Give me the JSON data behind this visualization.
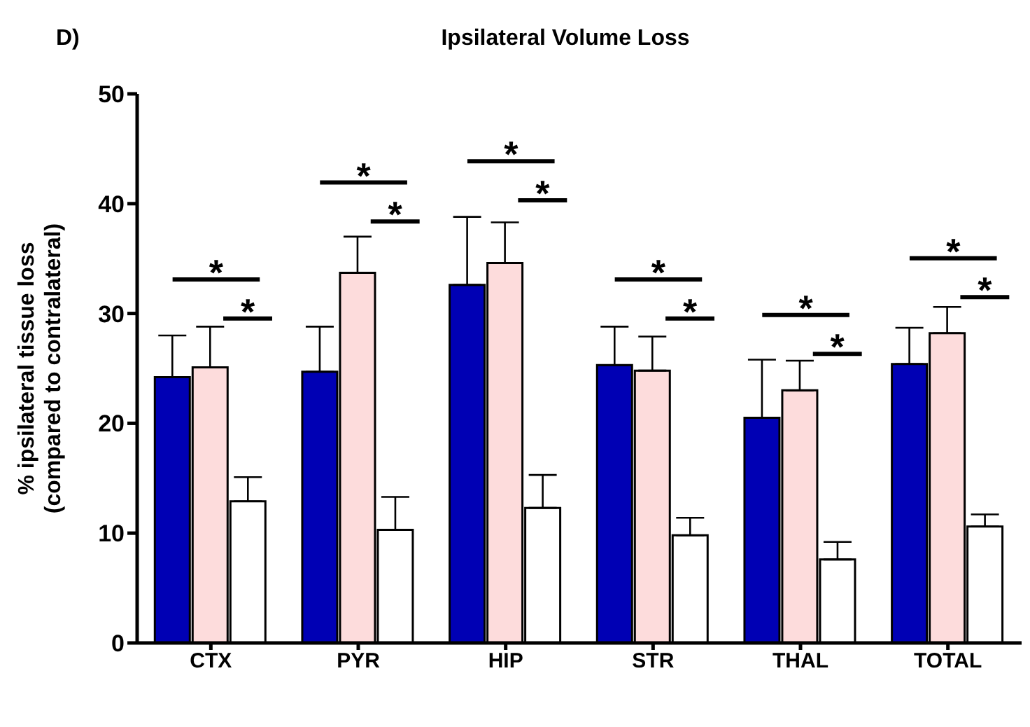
{
  "chart_data": {
    "type": "bar",
    "title": "Ipsilateral Volume Loss",
    "ylabel": "% ipsilateral tissue loss\n(compared to contralateral)",
    "annotations": [
      "D)",
      "*",
      "*",
      "*",
      "*",
      "*",
      "*",
      "*",
      "*",
      "*",
      "*",
      "*",
      "*"
    ],
    "categories": [
      "CTX",
      "PYR",
      "HIP",
      "STR",
      "THAL",
      "TOTAL"
    ],
    "series": [
      {
        "color": "#0000b4",
        "values": [
          24.2,
          24.7,
          32.6,
          25.3,
          20.5,
          25.4
        ],
        "errors": [
          [
            24.2,
            28.0
          ],
          [
            24.7,
            28.8
          ],
          [
            32.6,
            38.8
          ],
          [
            25.3,
            28.8
          ],
          [
            20.5,
            25.8
          ],
          [
            25.4,
            28.7
          ]
        ]
      },
      {
        "color": "#fddcdc",
        "values": [
          25.1,
          33.7,
          34.6,
          24.8,
          23.0,
          28.2
        ],
        "errors": [
          [
            25.1,
            28.8
          ],
          [
            33.7,
            37.0
          ],
          [
            34.6,
            38.3
          ],
          [
            24.8,
            27.9
          ],
          [
            23.0,
            25.7
          ],
          [
            28.2,
            30.6
          ]
        ]
      },
      {
        "color": "#ffffff",
        "values": [
          12.9,
          10.3,
          12.3,
          9.8,
          7.6,
          10.6
        ],
        "errors": [
          [
            12.9,
            15.1
          ],
          [
            10.3,
            13.3
          ],
          [
            12.3,
            15.3
          ],
          [
            9.8,
            11.4
          ],
          [
            7.6,
            9.2
          ],
          [
            10.6,
            11.7
          ]
        ]
      }
    ],
    "ylim": [
      0,
      50
    ],
    "yticks": [
      0,
      10,
      20,
      30,
      40,
      50
    ],
    "grid": false,
    "legend": false
  }
}
